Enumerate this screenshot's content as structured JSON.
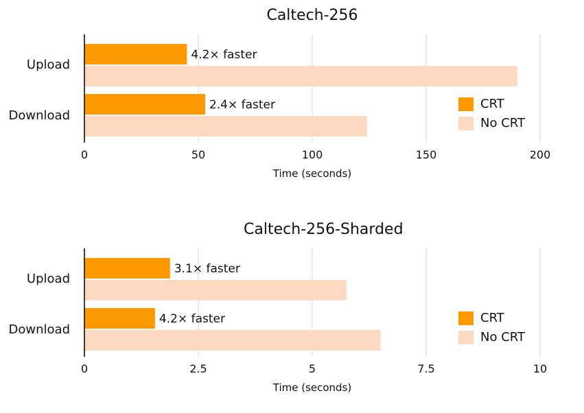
{
  "chart_data": [
    {
      "type": "bar",
      "orientation": "horizontal",
      "title": "Caltech-256",
      "xlabel": "Time (seconds)",
      "ylabel": "",
      "categories": [
        "Upload",
        "Download"
      ],
      "series": [
        {
          "name": "CRT",
          "values": [
            45,
            53
          ],
          "color": "#FF9900"
        },
        {
          "name": "No CRT",
          "values": [
            190,
            124
          ],
          "color": "#FCD9C0"
        }
      ],
      "annotations": [
        "4.2× faster",
        "2.4× faster"
      ],
      "xlim": [
        0,
        200
      ],
      "xticks": [
        0,
        50,
        100,
        150,
        200
      ],
      "xtick_labels": [
        "0",
        "50",
        "100",
        "150",
        "200"
      ],
      "grid": true,
      "legend": "right"
    },
    {
      "type": "bar",
      "orientation": "horizontal",
      "title": "Caltech-256-Sharded",
      "xlabel": "Time (seconds)",
      "ylabel": "",
      "categories": [
        "Upload",
        "Download"
      ],
      "series": [
        {
          "name": "CRT",
          "values": [
            1.88,
            1.55
          ],
          "color": "#FF9900"
        },
        {
          "name": "No CRT",
          "values": [
            5.75,
            6.5
          ],
          "color": "#FCD9C0"
        }
      ],
      "annotations": [
        "3.1× faster",
        "4.2× faster"
      ],
      "xlim": [
        0,
        10
      ],
      "xticks": [
        0,
        2.5,
        5,
        7.5,
        10
      ],
      "xtick_labels": [
        "0",
        "2.5",
        "5",
        "7.5",
        "10"
      ],
      "grid": true,
      "legend": "right"
    }
  ]
}
